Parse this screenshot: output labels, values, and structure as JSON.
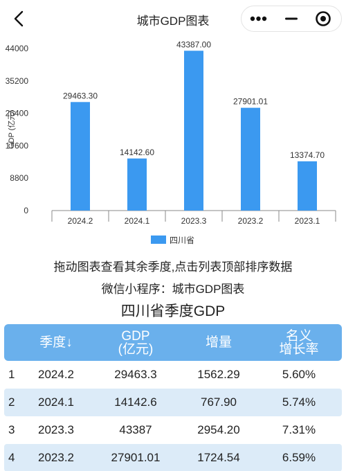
{
  "nav": {
    "title": "城市GDP图表"
  },
  "chart_data": {
    "type": "bar",
    "categories": [
      "2024.2",
      "2024.1",
      "2023.3",
      "2023.2",
      "2023.1"
    ],
    "series": [
      {
        "name": "四川省",
        "values": [
          29463.3,
          14142.6,
          43387.0,
          27901.01,
          13374.7
        ]
      }
    ],
    "value_labels": [
      "29463.30",
      "14142.60",
      "43387.00",
      "27901.01",
      "13374.70"
    ],
    "ylabel": "GDP (亿元)",
    "ylim": [
      0,
      44000
    ],
    "yticks": [
      "0",
      "8800",
      "17600",
      "26400",
      "35200",
      "44000"
    ],
    "grid": false,
    "legend_position": "bottom-center",
    "bar_color": "#3b99f0"
  },
  "hints": {
    "line1": "拖动图表查看其余季度,点击列表顶部排序数据",
    "line2": "微信小程序：城市GDP图表"
  },
  "table": {
    "title": "四川省季度GDP",
    "headers": {
      "quarter": "季度↓",
      "gdp_line1": "GDP",
      "gdp_line2": "(亿元)",
      "increase": "增量",
      "rate_line1": "名义",
      "rate_line2": "增长率"
    },
    "rows": [
      {
        "idx": "1",
        "quarter": "2024.2",
        "gdp": "29463.3",
        "increase": "1562.29",
        "rate": "5.60%"
      },
      {
        "idx": "2",
        "quarter": "2024.1",
        "gdp": "14142.6",
        "increase": "767.90",
        "rate": "5.74%"
      },
      {
        "idx": "3",
        "quarter": "2023.3",
        "gdp": "43387",
        "increase": "2954.20",
        "rate": "7.31%"
      },
      {
        "idx": "4",
        "quarter": "2023.2",
        "gdp": "27901.01",
        "increase": "1724.54",
        "rate": "6.59%"
      }
    ]
  },
  "colors": {
    "accent": "#3b99f0",
    "header_bg": "#6ab0ec",
    "alt_row_bg": "#dcebf8"
  },
  "icons": {
    "back": "chevron-left-icon",
    "more": "more-dots-icon",
    "minimize": "minimize-icon",
    "close": "target-close-icon"
  }
}
